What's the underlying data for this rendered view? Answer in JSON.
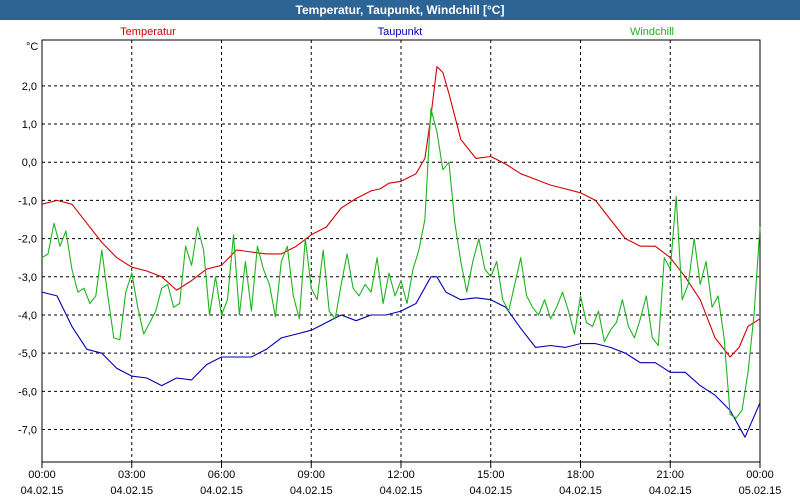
{
  "window": {
    "title": "Temperatur, Taupunkt, Windchill [°C]"
  },
  "chart_data": {
    "type": "line",
    "title": "Temperatur, Taupunkt, Windchill [°C]",
    "ylabel": "°C",
    "xlabel": "",
    "ylim": [
      -7.85,
      3.2
    ],
    "xlim": [
      0,
      24
    ],
    "grid": true,
    "legend_position": "top",
    "y_ticks": [
      2.0,
      1.0,
      0.0,
      -1.0,
      -2.0,
      -3.0,
      -4.0,
      -5.0,
      -6.0,
      -7.0
    ],
    "y_tick_labels": [
      "2,0",
      "1,0",
      "0,0",
      "-1,0",
      "-2,0",
      "-3,0",
      "-4,0",
      "-5,0",
      "-6,0",
      "-7,0"
    ],
    "x_ticks": [
      {
        "x": 0,
        "time": "00:00",
        "date": "04.02.15"
      },
      {
        "x": 3,
        "time": "03:00",
        "date": "04.02.15"
      },
      {
        "x": 6,
        "time": "06:00",
        "date": "04.02.15"
      },
      {
        "x": 9,
        "time": "09:00",
        "date": "04.02.15"
      },
      {
        "x": 12,
        "time": "12:00",
        "date": "04.02.15"
      },
      {
        "x": 15,
        "time": "15:00",
        "date": "04.02.15"
      },
      {
        "x": 18,
        "time": "18:00",
        "date": "04.02.15"
      },
      {
        "x": 21,
        "time": "21:00",
        "date": "04.02.15"
      },
      {
        "x": 24,
        "time": "00:00",
        "date": "05.02.15"
      }
    ],
    "series": [
      {
        "name": "Temperatur",
        "color": "#d40000",
        "x": [
          0,
          0.5,
          1,
          1.5,
          2,
          2.5,
          3,
          3.5,
          4,
          4.5,
          5,
          5.5,
          6,
          6.5,
          7,
          7.5,
          8,
          8.5,
          9,
          9.5,
          10,
          10.5,
          11,
          11.3,
          11.6,
          12,
          12.5,
          12.8,
          13,
          13.2,
          13.4,
          13.6,
          14,
          14.5,
          15,
          15.5,
          16,
          16.5,
          17,
          17.5,
          18,
          18.5,
          19,
          19.5,
          20,
          20.5,
          21,
          21.5,
          22,
          22.5,
          23,
          23.3,
          23.6,
          24
        ],
        "values": [
          -1.1,
          -1.0,
          -1.1,
          -1.6,
          -2.1,
          -2.5,
          -2.75,
          -2.85,
          -3.0,
          -3.35,
          -3.1,
          -2.8,
          -2.7,
          -2.3,
          -2.35,
          -2.4,
          -2.4,
          -2.2,
          -1.9,
          -1.7,
          -1.2,
          -0.95,
          -0.75,
          -0.7,
          -0.55,
          -0.5,
          -0.3,
          0.1,
          1.2,
          2.5,
          2.35,
          1.8,
          0.6,
          0.1,
          0.15,
          -0.05,
          -0.3,
          -0.45,
          -0.6,
          -0.7,
          -0.8,
          -1.0,
          -1.5,
          -2.0,
          -2.2,
          -2.2,
          -2.5,
          -3.0,
          -3.6,
          -4.6,
          -5.1,
          -4.85,
          -4.3,
          -4.1
        ]
      },
      {
        "name": "Taupunkt",
        "color": "#0000b4",
        "x": [
          0,
          0.5,
          1,
          1.5,
          2,
          2.5,
          3,
          3.5,
          4,
          4.5,
          5,
          5.5,
          6,
          6.5,
          7,
          7.5,
          8,
          8.5,
          9,
          9.5,
          10,
          10.5,
          11,
          11.5,
          12,
          12.5,
          13,
          13.2,
          13.5,
          14,
          14.5,
          15,
          15.5,
          16,
          16.5,
          17,
          17.5,
          18,
          18.5,
          19,
          19.5,
          20,
          20.5,
          21,
          21.5,
          22,
          22.5,
          23,
          23.5,
          24
        ],
        "values": [
          -3.4,
          -3.5,
          -4.3,
          -4.9,
          -5.0,
          -5.4,
          -5.6,
          -5.65,
          -5.85,
          -5.65,
          -5.7,
          -5.3,
          -5.1,
          -5.1,
          -5.1,
          -4.9,
          -4.6,
          -4.5,
          -4.4,
          -4.2,
          -4.0,
          -4.15,
          -4.0,
          -4.0,
          -3.9,
          -3.7,
          -3.0,
          -3.0,
          -3.4,
          -3.6,
          -3.55,
          -3.6,
          -3.8,
          -4.35,
          -4.85,
          -4.8,
          -4.85,
          -4.75,
          -4.75,
          -4.85,
          -5.0,
          -5.25,
          -5.25,
          -5.5,
          -5.5,
          -5.85,
          -6.1,
          -6.5,
          -7.2,
          -6.3
        ]
      },
      {
        "name": "Windchill",
        "color": "#1eb41e",
        "x": [
          0,
          0.2,
          0.4,
          0.6,
          0.8,
          1.0,
          1.2,
          1.4,
          1.6,
          1.8,
          2.0,
          2.2,
          2.4,
          2.6,
          2.8,
          3.0,
          3.2,
          3.4,
          3.6,
          3.8,
          4.0,
          4.2,
          4.4,
          4.6,
          4.8,
          5.0,
          5.2,
          5.4,
          5.6,
          5.8,
          6.0,
          6.2,
          6.4,
          6.6,
          6.8,
          7.0,
          7.2,
          7.4,
          7.6,
          7.8,
          8.0,
          8.2,
          8.4,
          8.6,
          8.8,
          9.0,
          9.2,
          9.4,
          9.6,
          9.8,
          10.0,
          10.2,
          10.4,
          10.6,
          10.8,
          11.0,
          11.2,
          11.4,
          11.6,
          11.8,
          12.0,
          12.2,
          12.4,
          12.6,
          12.8,
          13.0,
          13.2,
          13.4,
          13.6,
          13.8,
          14.0,
          14.2,
          14.4,
          14.6,
          14.8,
          15.0,
          15.2,
          15.4,
          15.6,
          15.8,
          16.0,
          16.2,
          16.4,
          16.6,
          16.8,
          17.0,
          17.2,
          17.4,
          17.6,
          17.8,
          18.0,
          18.2,
          18.4,
          18.6,
          18.8,
          19.0,
          19.2,
          19.4,
          19.6,
          19.8,
          20.0,
          20.2,
          20.4,
          20.6,
          20.8,
          21.0,
          21.2,
          21.4,
          21.6,
          21.8,
          22.0,
          22.2,
          22.4,
          22.6,
          22.8,
          23.0,
          23.2,
          23.4,
          23.6,
          23.8,
          24.0
        ],
        "values": [
          -2.5,
          -2.4,
          -1.6,
          -2.2,
          -1.8,
          -2.8,
          -3.4,
          -3.3,
          -3.7,
          -3.5,
          -2.3,
          -3.5,
          -4.6,
          -4.65,
          -3.4,
          -2.9,
          -3.8,
          -4.5,
          -4.2,
          -3.9,
          -3.3,
          -3.2,
          -3.8,
          -3.7,
          -2.2,
          -2.7,
          -1.7,
          -2.3,
          -4.0,
          -3.0,
          -4.0,
          -3.6,
          -1.9,
          -4.0,
          -2.6,
          -3.9,
          -2.2,
          -2.8,
          -3.2,
          -4.05,
          -2.6,
          -2.2,
          -3.5,
          -4.1,
          -2.0,
          -3.3,
          -3.6,
          -2.3,
          -3.9,
          -4.1,
          -3.2,
          -2.4,
          -3.3,
          -3.5,
          -3.2,
          -3.4,
          -2.5,
          -3.7,
          -2.9,
          -3.5,
          -3.1,
          -3.7,
          -2.8,
          -2.3,
          -1.5,
          1.4,
          0.8,
          -0.2,
          0.0,
          -1.6,
          -2.6,
          -3.4,
          -2.6,
          -2.0,
          -2.8,
          -3.0,
          -2.6,
          -3.6,
          -3.9,
          -3.2,
          -2.5,
          -3.5,
          -3.8,
          -4.0,
          -3.6,
          -4.1,
          -3.8,
          -3.4,
          -3.9,
          -4.5,
          -3.5,
          -4.2,
          -4.3,
          -3.9,
          -4.7,
          -4.4,
          -4.2,
          -3.6,
          -4.3,
          -4.6,
          -4.1,
          -3.5,
          -4.6,
          -4.8,
          -2.5,
          -2.8,
          -0.9,
          -3.6,
          -3.2,
          -2.0,
          -3.2,
          -2.6,
          -3.8,
          -3.5,
          -4.6,
          -6.6,
          -6.7,
          -6.5,
          -5.5,
          -4.0,
          -1.7
        ]
      }
    ]
  }
}
